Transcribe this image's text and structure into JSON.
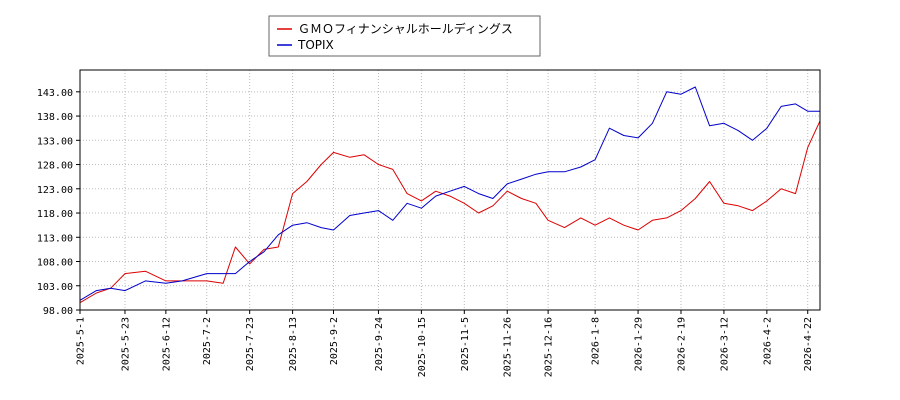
{
  "chart_data": {
    "type": "line",
    "title": "",
    "xlabel": "",
    "ylabel": "",
    "ylim": [
      98,
      147.5
    ],
    "y_ticks": [
      "98.00",
      "103.00",
      "108.00",
      "113.00",
      "118.00",
      "123.00",
      "128.00",
      "133.00",
      "138.00",
      "143.00"
    ],
    "x_ticks": [
      "2025-5-1",
      "2025-5-23",
      "2025-6-12",
      "2025-7-2",
      "2025-7-23",
      "2025-8-13",
      "2025-9-2",
      "2025-9-24",
      "2025-10-15",
      "2025-11-5",
      "2025-11-26",
      "2025-12-16",
      "2026-1-8",
      "2026-1-29",
      "2026-2-19",
      "2026-3-12",
      "2026-4-2",
      "2026-4-22"
    ],
    "grid": true,
    "legend_position": "top-center",
    "x": [
      "2025-5-1",
      "2025-5-9",
      "2025-5-16",
      "2025-5-23",
      "2025-6-2",
      "2025-6-12",
      "2025-6-20",
      "2025-7-2",
      "2025-7-10",
      "2025-7-16",
      "2025-7-23",
      "2025-7-30",
      "2025-8-6",
      "2025-8-13",
      "2025-8-20",
      "2025-8-27",
      "2025-9-2",
      "2025-9-10",
      "2025-9-17",
      "2025-9-24",
      "2025-10-1",
      "2025-10-8",
      "2025-10-15",
      "2025-10-22",
      "2025-10-29",
      "2025-11-5",
      "2025-11-12",
      "2025-11-19",
      "2025-11-26",
      "2025-12-3",
      "2025-12-10",
      "2025-12-16",
      "2025-12-24",
      "2026-1-1",
      "2026-1-8",
      "2026-1-15",
      "2026-1-22",
      "2026-1-29",
      "2026-2-5",
      "2026-2-12",
      "2026-2-19",
      "2026-2-26",
      "2026-3-5",
      "2026-3-12",
      "2026-3-19",
      "2026-3-26",
      "2026-4-2",
      "2026-4-9",
      "2026-4-16",
      "2026-4-22",
      "2026-4-28"
    ],
    "series": [
      {
        "name": "ＧＭＯフィナンシャルホールディングス",
        "color": "#dd0000",
        "values": [
          99.5,
          101.5,
          102.5,
          105.5,
          106.0,
          104.0,
          104.0,
          104.0,
          103.5,
          111.0,
          107.5,
          110.5,
          111.0,
          122.0,
          124.5,
          128.0,
          130.5,
          129.5,
          130.0,
          128.0,
          127.0,
          122.0,
          120.5,
          122.5,
          121.5,
          120.0,
          118.0,
          119.5,
          122.5,
          121.0,
          120.0,
          116.5,
          115.0,
          117.0,
          115.5,
          117.0,
          115.5,
          114.5,
          116.5,
          117.0,
          118.5,
          121.0,
          124.5,
          120.0,
          119.5,
          118.5,
          120.5,
          123.0,
          122.0,
          131.5,
          137.0
        ]
      },
      {
        "name": "TOPIX",
        "color": "#0000cc",
        "values": [
          100.0,
          102.0,
          102.5,
          102.0,
          104.0,
          103.5,
          104.0,
          105.5,
          105.5,
          105.5,
          108.0,
          110.0,
          113.5,
          115.5,
          116.0,
          115.0,
          114.5,
          117.5,
          118.0,
          118.5,
          116.5,
          120.0,
          119.0,
          121.5,
          122.5,
          123.5,
          122.0,
          121.0,
          124.0,
          125.0,
          126.0,
          126.5,
          126.5,
          127.5,
          129.0,
          135.5,
          134.0,
          133.5,
          136.5,
          143.0,
          142.5,
          144.0,
          136.0,
          136.5,
          135.0,
          133.0,
          135.5,
          140.0,
          140.5,
          139.0,
          139.0
        ]
      }
    ]
  }
}
